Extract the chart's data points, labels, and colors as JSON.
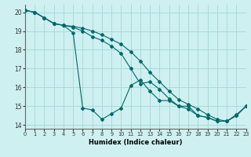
{
  "xlabel": "Humidex (Indice chaleur)",
  "background_color": "#cef0f0",
  "grid_color": "#aadada",
  "line_color": "#006868",
  "xlim": [
    0,
    23
  ],
  "ylim": [
    13.8,
    20.4
  ],
  "xticks": [
    0,
    1,
    2,
    3,
    4,
    5,
    6,
    7,
    8,
    9,
    10,
    11,
    12,
    13,
    14,
    15,
    16,
    17,
    18,
    19,
    20,
    21,
    22,
    23
  ],
  "yticks": [
    14,
    15,
    16,
    17,
    18,
    19,
    20
  ],
  "series": [
    [
      20.1,
      20.0,
      19.7,
      19.4,
      19.3,
      18.9,
      14.9,
      14.8,
      14.3,
      14.6,
      14.9,
      16.1,
      16.4,
      15.8,
      15.3,
      15.3,
      15.0,
      15.0,
      14.5,
      14.4,
      14.2,
      14.2,
      14.5,
      15.0
    ],
    [
      20.1,
      20.0,
      19.7,
      19.4,
      19.3,
      19.2,
      19.0,
      18.7,
      18.5,
      18.2,
      17.8,
      17.0,
      16.2,
      16.3,
      15.9,
      15.4,
      15.0,
      14.85,
      14.5,
      14.4,
      14.2,
      14.2,
      14.5,
      15.0
    ],
    [
      20.1,
      20.0,
      19.7,
      19.4,
      19.3,
      19.25,
      19.15,
      19.0,
      18.8,
      18.55,
      18.3,
      17.9,
      17.4,
      16.8,
      16.3,
      15.8,
      15.35,
      15.1,
      14.85,
      14.55,
      14.3,
      14.2,
      14.55,
      15.0
    ]
  ]
}
